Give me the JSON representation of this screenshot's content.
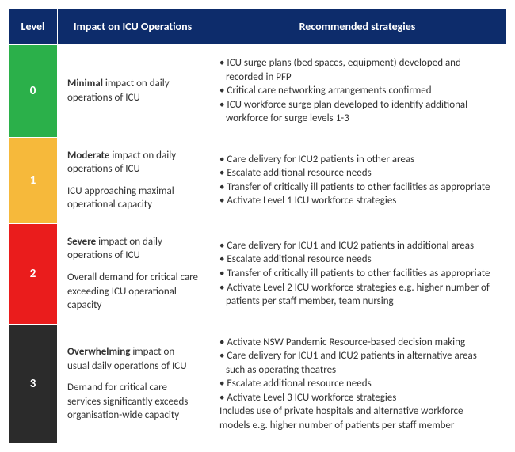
{
  "table": {
    "header_bg": "#0d2c6b",
    "columns": {
      "level": "Level",
      "impact": "Impact on ICU Operations",
      "strategies": "Recommended strategies"
    },
    "rows": [
      {
        "level": "0",
        "level_bg": "#2bb04a",
        "impact_lead": "Minimal",
        "impact_main": " impact on daily operations of ICU",
        "impact_sub": "",
        "strategies": [
          "ICU surge plans (bed spaces, equipment) developed and recorded in PFP",
          "Critical care networking arrangements confirmed",
          "ICU workforce surge plan developed to identify additional workforce for surge levels 1-3"
        ]
      },
      {
        "level": "1",
        "level_bg": "#f6b93b",
        "impact_lead": "Moderate",
        "impact_main": " impact on daily operations of ICU",
        "impact_sub": "ICU approaching maximal operational capacity",
        "strategies": [
          "Care delivery for ICU2 patients in other areas",
          "Escalate additional resource needs",
          "Transfer of critically ill patients to other facilities as appropriate",
          "Activate Level 1 ICU workforce strategies"
        ]
      },
      {
        "level": "2",
        "level_bg": "#ea1c1c",
        "impact_lead": "Severe",
        "impact_main": " impact on daily operations of ICU",
        "impact_sub": "Overall demand for critical care exceeding ICU operational capacity",
        "strategies": [
          "Care delivery for ICU1 and ICU2 patients in additional areas",
          "Escalate additional resource needs",
          "Transfer of critically ill patients to other facilities as appropriate",
          "Activate Level 2 ICU workforce strategies e.g. higher number of patients per staff member, team nursing"
        ]
      },
      {
        "level": "3",
        "level_bg": "#2b2b2b",
        "impact_lead": "Overwhelming",
        "impact_main": " impact on usual daily operations of ICU",
        "impact_sub": "Demand for critical care services significantly exceeds organisation-wide capacity",
        "strategies": [
          "Activate NSW Pandemic Resource-based decision making",
          "Care delivery for ICU1 and ICU2 patients in alternative areas such as operating theatres",
          "Escalate additional resource needs",
          "Activate Level 3 ICU workforce strategies"
        ],
        "trailing_text": "Includes use of private hospitals and alternative workforce models e.g. higher number of patients per staff member"
      }
    ]
  }
}
